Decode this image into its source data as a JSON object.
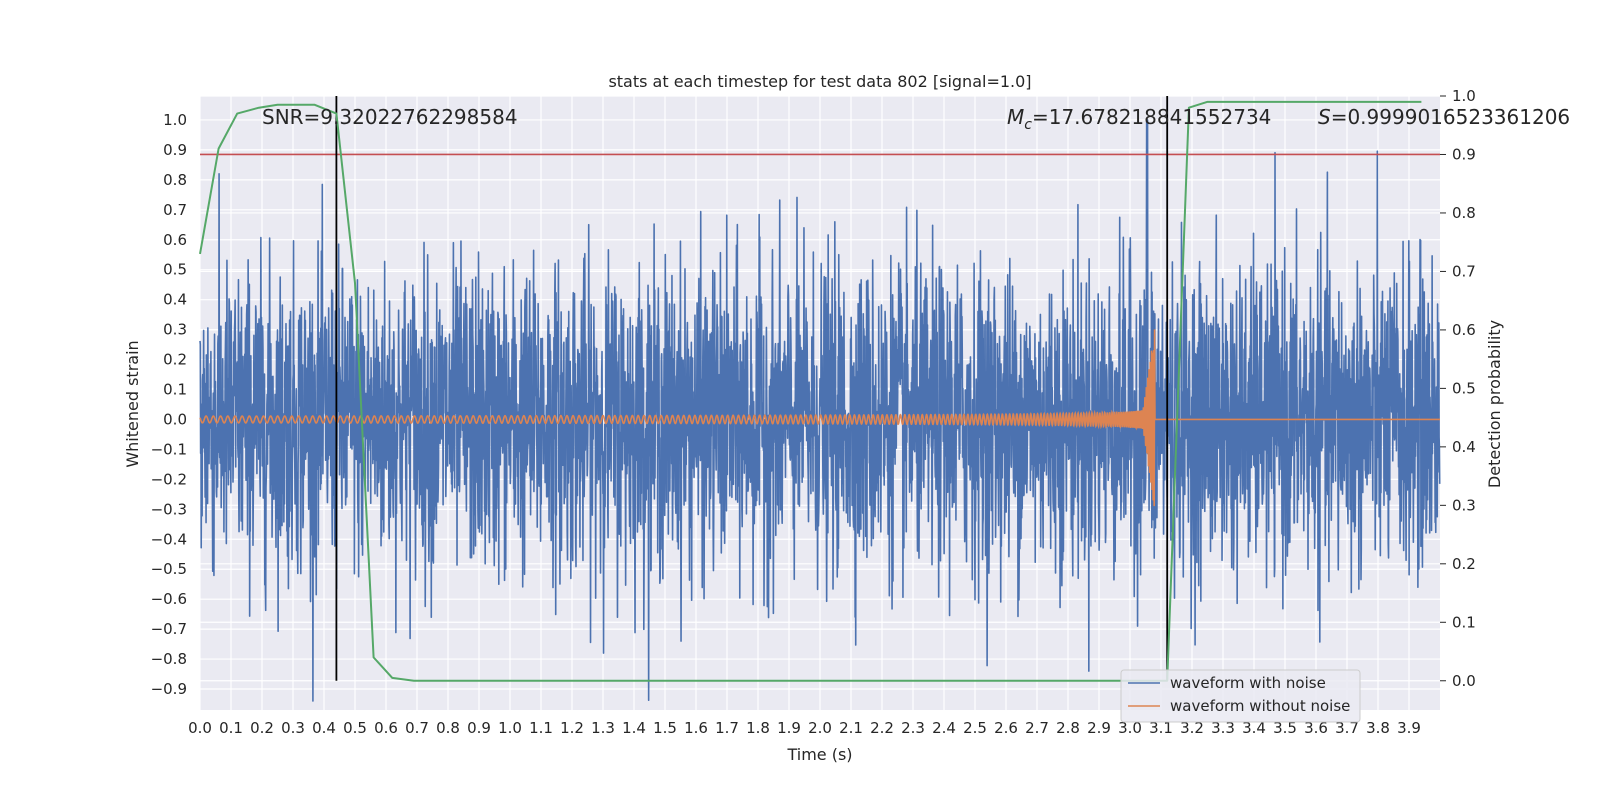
{
  "chart_data": {
    "type": "line",
    "title": "stats at each timestep for test data 802 [signal=1.0]",
    "xlabel": "Time (s)",
    "ylabel": "Whitened strain",
    "y2label": "Detection probability",
    "xlim": [
      0.0,
      4.0
    ],
    "ylim": [
      -0.97,
      1.08
    ],
    "y2lim": [
      -0.05,
      1.0
    ],
    "x_ticks": [
      0.0,
      0.1,
      0.2,
      0.3,
      0.4,
      0.5,
      0.6,
      0.7,
      0.8,
      0.9,
      1.0,
      1.1,
      1.2,
      1.3,
      1.4,
      1.5,
      1.6,
      1.7,
      1.8,
      1.9,
      2.0,
      2.1,
      2.2,
      2.3,
      2.4,
      2.5,
      2.6,
      2.7,
      2.8,
      2.9,
      3.0,
      3.1,
      3.2,
      3.3,
      3.4,
      3.5,
      3.6,
      3.7,
      3.8,
      3.9
    ],
    "x_tick_labels": [
      "0.0",
      "0.1",
      "0.2",
      "0.3",
      "0.4",
      "0.5",
      "0.6",
      "0.7",
      "0.8",
      "0.9",
      "1.0",
      "1.1",
      "1.2",
      "1.3",
      "1.4",
      "1.5",
      "1.6",
      "1.7",
      "1.8",
      "1.9",
      "2.0",
      "2.1",
      "2.2",
      "2.3",
      "2.4",
      "2.5",
      "2.6",
      "2.7",
      "2.8",
      "2.9",
      "3.0",
      "3.1",
      "3.2",
      "3.3",
      "3.4",
      "3.5",
      "3.6",
      "3.7",
      "3.8",
      "3.9"
    ],
    "y_ticks": [
      1.0,
      0.9,
      0.8,
      0.7,
      0.6,
      0.5,
      0.4,
      0.3,
      0.2,
      0.1,
      0.0,
      -0.1,
      -0.2,
      -0.3,
      -0.4,
      -0.5,
      -0.6,
      -0.7,
      -0.8,
      -0.9
    ],
    "y_tick_labels": [
      "1.0",
      "0.9",
      "0.8",
      "0.7",
      "0.6",
      "0.5",
      "0.4",
      "0.3",
      "0.2",
      "0.1",
      "0.0",
      "−0.1",
      "−0.2",
      "−0.3",
      "−0.4",
      "−0.5",
      "−0.6",
      "−0.7",
      "−0.8",
      "−0.9"
    ],
    "y2_ticks": [
      1.0,
      0.9,
      0.8,
      0.7,
      0.6,
      0.5,
      0.4,
      0.3,
      0.2,
      0.1,
      0.0
    ],
    "y2_tick_labels": [
      "1.0",
      "0.9",
      "0.8",
      "0.7",
      "0.6",
      "0.5",
      "0.4",
      "0.3",
      "0.2",
      "0.1",
      "0.0"
    ],
    "grid": true,
    "legend_position": "bottom-right",
    "annotations": {
      "snr": "SNR=9.32022762298584",
      "mc_symbol": "M",
      "mc_sub": "c",
      "mc_value": "=17.678218841552734",
      "s_symbol": "S",
      "s_value": "=0.9999016523361206"
    },
    "threshold_line": {
      "axis": "y2",
      "value": 0.9,
      "color": "#c44e52"
    },
    "vertical_markers": [
      0.44,
      3.12
    ],
    "series": [
      {
        "name": "waveform with noise",
        "color": "#4c72b0",
        "axis": "y",
        "kind": "noise",
        "amplitude_sd": 0.25,
        "peak": 1.0
      },
      {
        "name": "waveform without noise",
        "color": "#dd8452",
        "axis": "y",
        "kind": "chirp",
        "merger_time": 3.08,
        "peak_amplitude": 0.4
      },
      {
        "name": "detection probability",
        "color": "#55a868",
        "axis": "y2",
        "x": [
          0.0,
          0.06,
          0.12,
          0.19,
          0.25,
          0.31,
          0.37,
          0.44,
          0.5,
          0.56,
          0.62,
          0.69,
          0.75,
          1.0,
          1.5,
          2.0,
          2.5,
          2.9,
          3.05,
          3.12,
          3.19,
          3.25,
          3.5,
          3.94
        ],
        "values": [
          0.73,
          0.91,
          0.97,
          0.98,
          0.985,
          0.985,
          0.985,
          0.97,
          0.68,
          0.04,
          0.005,
          0.0,
          0.0,
          0.0,
          0.0,
          0.0,
          0.0,
          0.0,
          0.0,
          0.0,
          0.98,
          0.99,
          0.99,
          0.99
        ]
      }
    ]
  }
}
